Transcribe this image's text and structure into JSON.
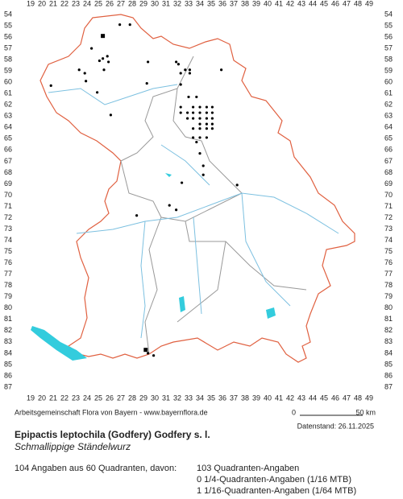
{
  "map": {
    "columns": [
      19,
      20,
      21,
      22,
      23,
      24,
      25,
      26,
      27,
      28,
      29,
      30,
      31,
      32,
      33,
      34,
      35,
      36,
      37,
      38,
      39,
      40,
      41,
      42,
      43,
      44,
      45,
      46,
      47,
      48,
      49
    ],
    "rows": [
      54,
      55,
      56,
      57,
      58,
      59,
      60,
      61,
      62,
      63,
      64,
      65,
      66,
      67,
      68,
      69,
      70,
      71,
      72,
      73,
      74,
      75,
      76,
      77,
      78,
      79,
      80,
      81,
      82,
      83,
      84,
      85,
      86,
      87
    ],
    "records": [
      [
        26.9,
        54.9
      ],
      [
        27.8,
        54.9
      ],
      [
        24.4,
        57.0
      ],
      [
        29.4,
        58.2
      ],
      [
        25.1,
        58.1
      ],
      [
        25.4,
        57.9
      ],
      [
        25.8,
        57.7
      ],
      [
        25.9,
        58.2
      ],
      [
        23.8,
        59.2
      ],
      [
        23.3,
        58.9
      ],
      [
        25.5,
        58.9
      ],
      [
        23.9,
        59.9
      ],
      [
        20.8,
        60.3
      ],
      [
        24.9,
        60.9
      ],
      [
        26.1,
        62.9
      ],
      [
        29.3,
        60.1
      ],
      [
        31.9,
        58.2
      ],
      [
        32.1,
        58.4
      ],
      [
        32.3,
        59.2
      ],
      [
        32.7,
        58.9
      ],
      [
        33.1,
        58.9
      ],
      [
        33.1,
        59.2
      ],
      [
        32.3,
        60.2
      ],
      [
        35.9,
        58.9
      ],
      [
        33.0,
        61.3
      ],
      [
        33.7,
        61.3
      ],
      [
        32.3,
        62.2
      ],
      [
        33.4,
        62.2
      ],
      [
        34.0,
        62.2
      ],
      [
        34.6,
        62.2
      ],
      [
        35.1,
        62.2
      ],
      [
        32.3,
        62.7
      ],
      [
        32.9,
        62.7
      ],
      [
        33.4,
        62.7
      ],
      [
        34.0,
        62.7
      ],
      [
        34.6,
        62.7
      ],
      [
        35.1,
        62.7
      ],
      [
        32.9,
        63.2
      ],
      [
        33.4,
        63.2
      ],
      [
        34.0,
        63.2
      ],
      [
        34.6,
        63.2
      ],
      [
        35.1,
        63.2
      ],
      [
        34.0,
        63.7
      ],
      [
        34.6,
        63.7
      ],
      [
        35.1,
        63.7
      ],
      [
        33.4,
        64.1
      ],
      [
        34.0,
        64.1
      ],
      [
        34.6,
        64.1
      ],
      [
        35.1,
        64.1
      ],
      [
        33.4,
        64.9
      ],
      [
        34.0,
        64.9
      ],
      [
        34.6,
        64.9
      ],
      [
        33.7,
        65.3
      ],
      [
        34.0,
        66.3
      ],
      [
        34.3,
        67.4
      ],
      [
        34.3,
        68.2
      ],
      [
        37.3,
        69.1
      ],
      [
        32.4,
        68.9
      ],
      [
        31.3,
        70.9
      ],
      [
        31.9,
        71.3
      ],
      [
        28.4,
        71.8
      ],
      [
        29.4,
        84.0
      ],
      [
        29.9,
        84.2
      ]
    ],
    "square_records": [
      [
        25.4,
        55.9
      ],
      [
        29.2,
        83.7
      ]
    ]
  },
  "footer": {
    "source": "Arbeitsgemeinschaft Flora von Bayern - www.bayernflora.de",
    "scale_start": "0",
    "scale_end": "50 km",
    "date": "Datenstand: 26.11.2025",
    "title": "Epipactis leptochila (Godfery) Godfery s. l.",
    "subtitle": "Schmallippige Ständelwurz",
    "summary": "104 Angaben aus 60 Quadranten, davon:",
    "details": [
      "103 Quadranten-Angaben",
      "0 1/4-Quadranten-Angaben (1/16 MTB)",
      "1 1/16-Quadranten-Angaben (1/64 MTB)"
    ]
  }
}
